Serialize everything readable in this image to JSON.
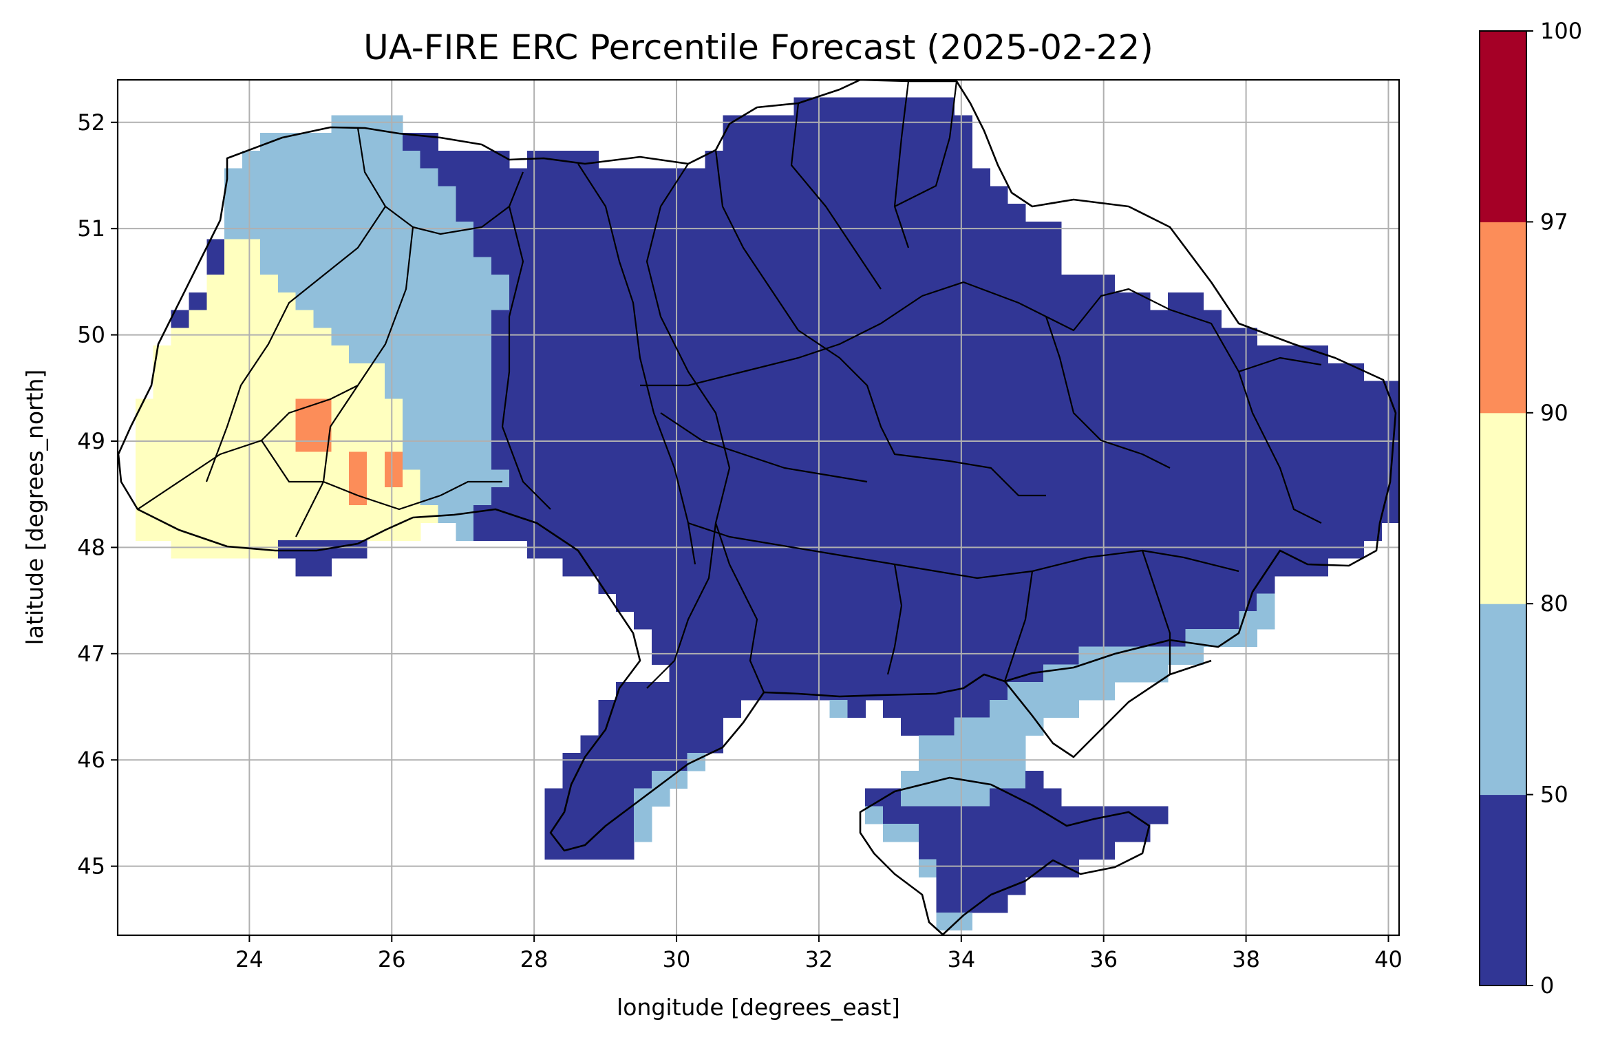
{
  "chart_data": {
    "type": "heatmap",
    "title": "UA-FIRE ERC Percentile Forecast (2025-02-22)",
    "xlabel": "longitude [degrees_east]",
    "ylabel": "latitude [degrees_north]",
    "xlim": [
      22.15,
      40.15
    ],
    "ylim": [
      44.35,
      52.4
    ],
    "xticks": [
      24,
      26,
      28,
      30,
      32,
      34,
      36,
      38,
      40
    ],
    "yticks": [
      45,
      46,
      47,
      48,
      49,
      50,
      51,
      52
    ],
    "grid": true,
    "colorbar": {
      "position": "right",
      "boundaries": [
        0,
        50,
        80,
        90,
        97,
        100
      ],
      "tick_labels": [
        "0",
        "50",
        "80",
        "90",
        "97",
        "100"
      ],
      "colors": [
        "#313695",
        "#91bfdb",
        "#ffffbf",
        "#fc8d59",
        "#a50026"
      ]
    },
    "classes": [
      {
        "range": "0-50",
        "color": "#313695",
        "coverage": "central, northern, eastern and southern Ukraine"
      },
      {
        "range": "50-80",
        "color": "#91bfdb",
        "coverage": "north-west Ukraine, Azov and Black Sea coasts, northern Crimea"
      },
      {
        "range": "80-90",
        "color": "#ffffbf",
        "coverage": "western Ukraine (Lviv, Ternopil, Ivano-Frankivsk)"
      },
      {
        "range": "90-97",
        "color": "#fc8d59",
        "coverage": "small patches near 24.8-25.0E 49.0-49.3N and 25.5-26.0E 48.4-48.8N"
      },
      {
        "range": "97-100",
        "color": "#a50026",
        "coverage": "none"
      }
    ],
    "grid_cell_size_deg": [
      0.25,
      0.1667
    ],
    "basemap": "Ukraine oblast boundaries and coastline"
  }
}
